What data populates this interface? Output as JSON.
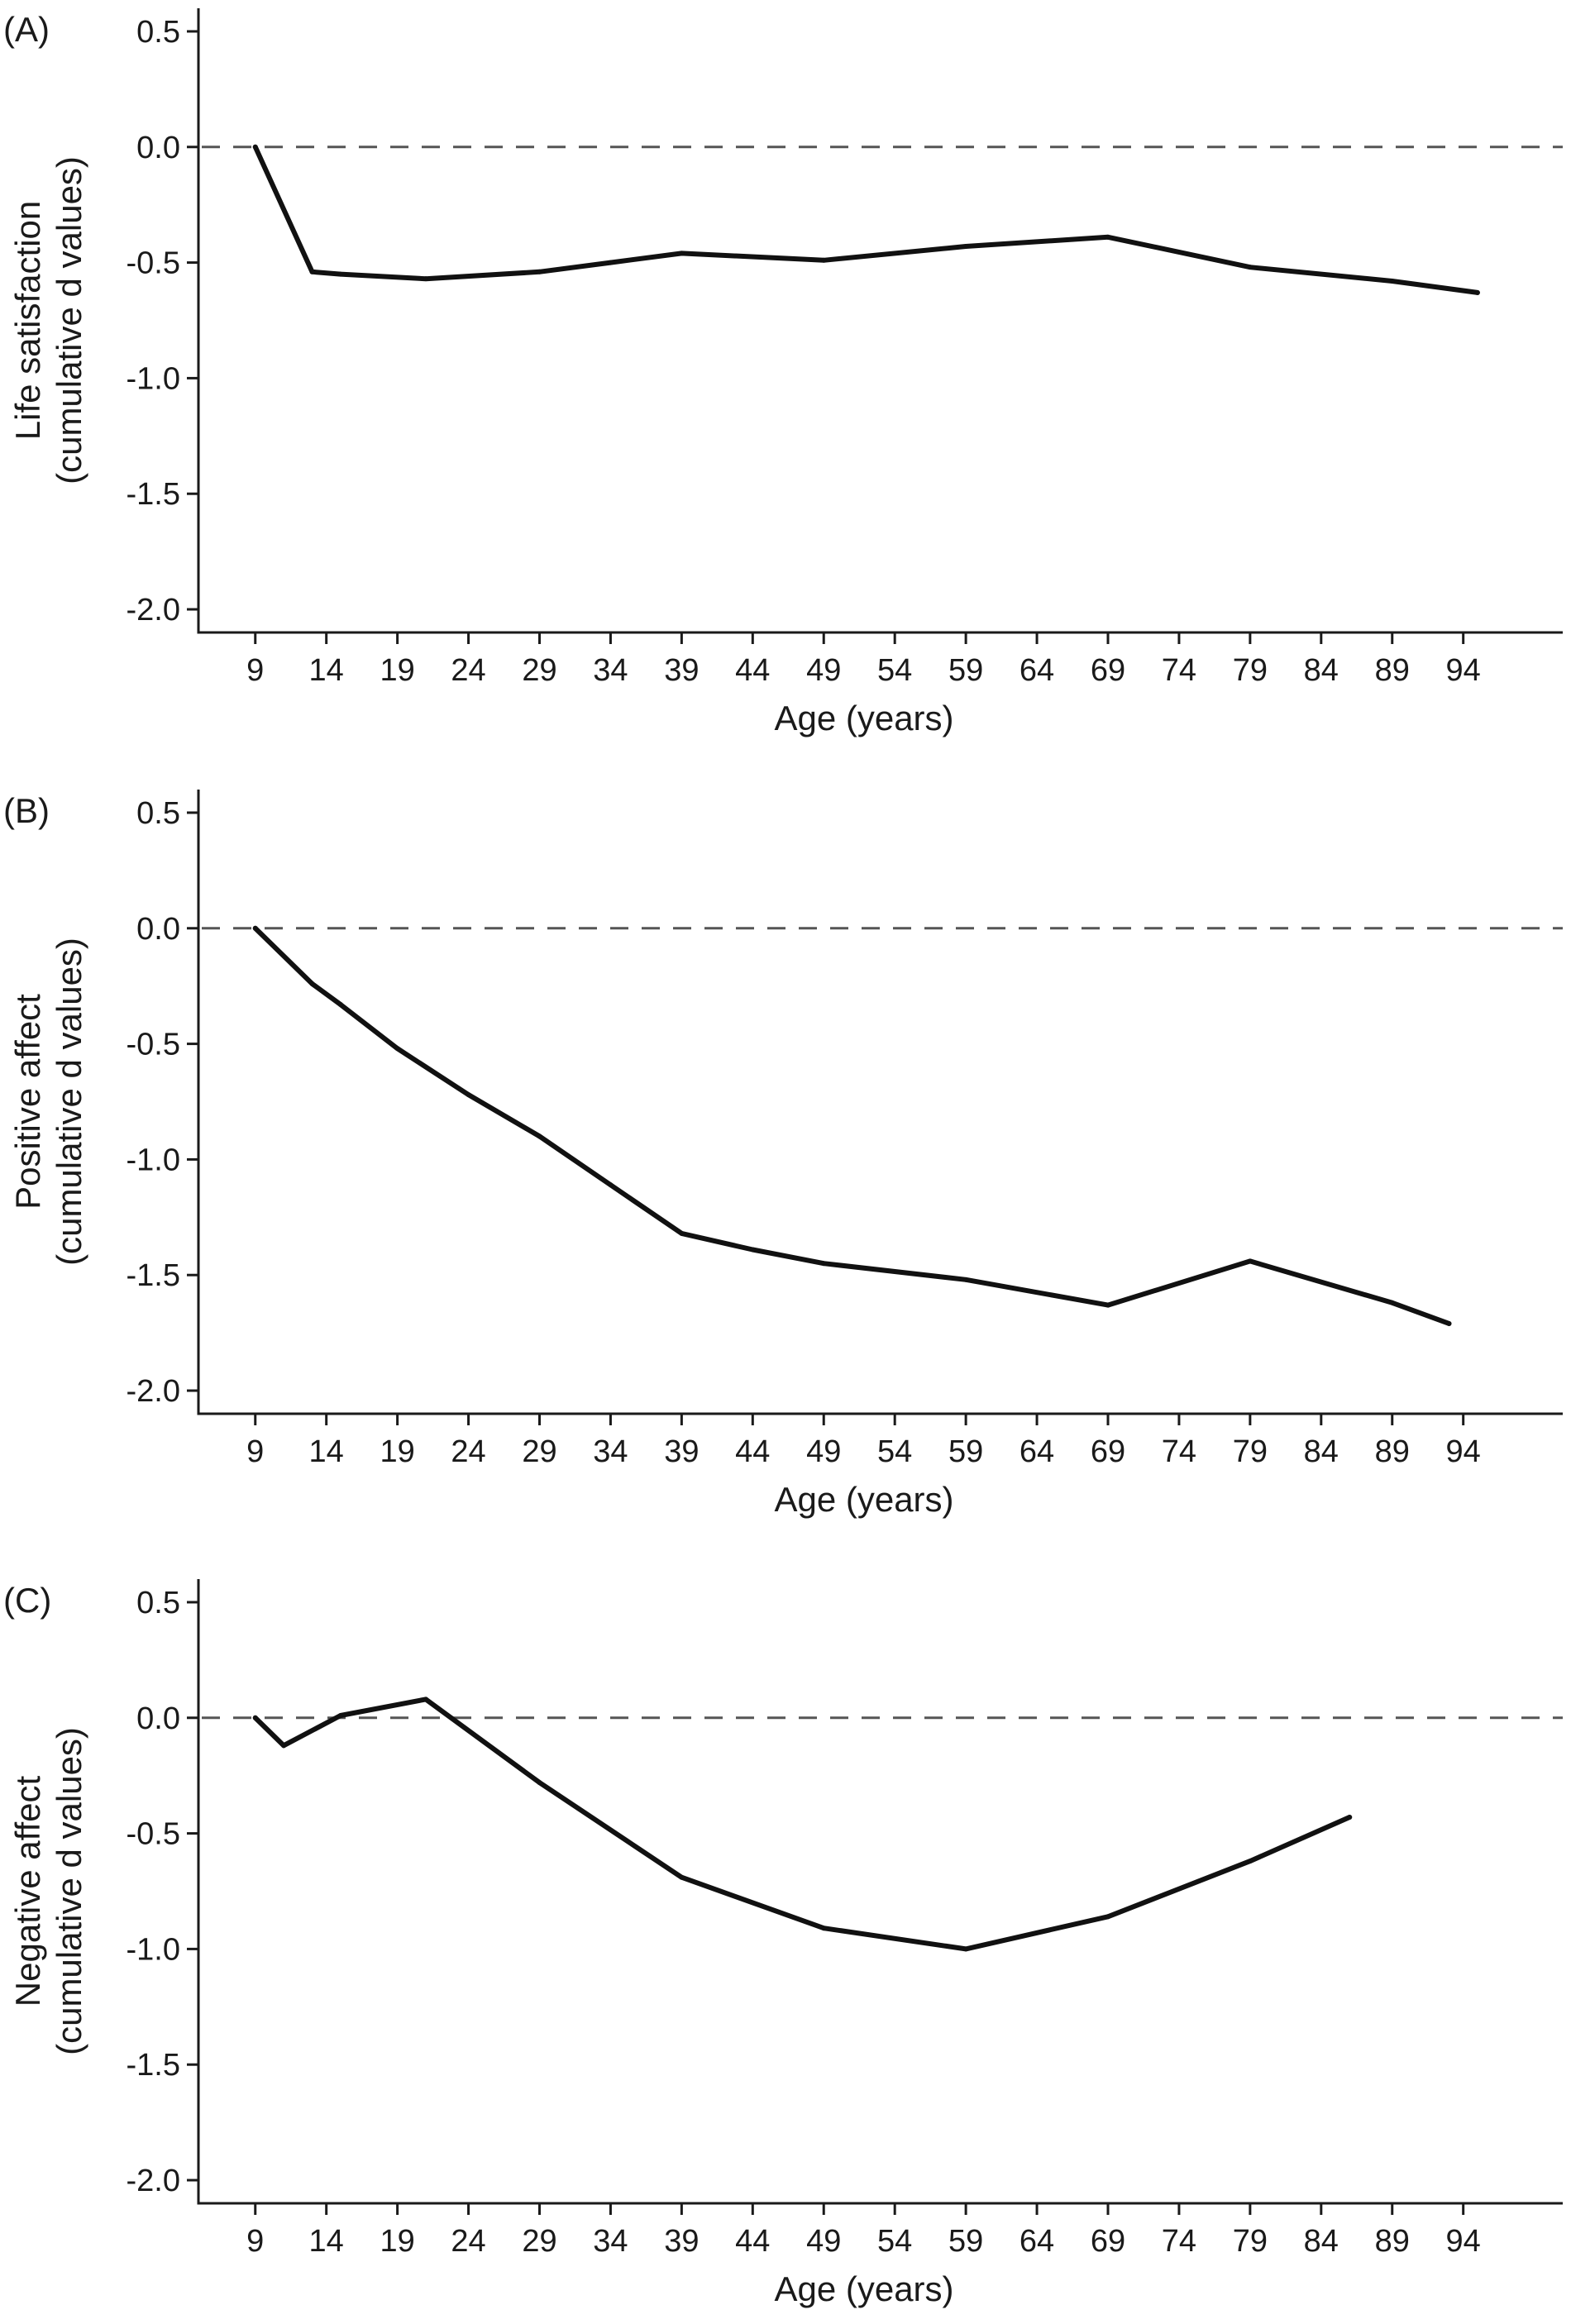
{
  "chart_data": [
    {
      "type": "line",
      "panel_label": "(A)",
      "xlabel": "Age (years)",
      "ylabel_lines": [
        "Life satisfaction",
        "(cumulative d values)"
      ],
      "ylim": [
        -2.1,
        0.6
      ],
      "xlim": [
        5,
        101
      ],
      "xticks": [
        9,
        14,
        19,
        24,
        29,
        34,
        39,
        44,
        49,
        54,
        59,
        64,
        69,
        74,
        79,
        84,
        89,
        94
      ],
      "yticks": [
        0.5,
        0.0,
        -0.5,
        -1.0,
        -1.5,
        -2.0
      ],
      "ytick_labels": [
        "0.5",
        "0.0",
        "-0.5",
        "-1.0",
        "-1.5",
        "-2.0"
      ],
      "reference_line": 0.0,
      "grid": false,
      "series": [
        {
          "x": [
            9,
            13,
            15,
            21,
            29,
            34,
            39,
            49,
            59,
            69,
            79,
            89,
            95
          ],
          "y": [
            0.0,
            -0.54,
            -0.55,
            -0.57,
            -0.54,
            -0.5,
            -0.46,
            -0.49,
            -0.43,
            -0.39,
            -0.52,
            -0.58,
            -0.63
          ]
        }
      ]
    },
    {
      "type": "line",
      "panel_label": "(B)",
      "xlabel": "Age (years)",
      "ylabel_lines": [
        "Positive affect",
        "(cumulative d values)"
      ],
      "ylim": [
        -2.1,
        0.6
      ],
      "xlim": [
        5,
        101
      ],
      "xticks": [
        9,
        14,
        19,
        24,
        29,
        34,
        39,
        44,
        49,
        54,
        59,
        64,
        69,
        74,
        79,
        84,
        89,
        94
      ],
      "yticks": [
        0.5,
        0.0,
        -0.5,
        -1.0,
        -1.5,
        -2.0
      ],
      "ytick_labels": [
        "0.5",
        "0.0",
        "-0.5",
        "-1.0",
        "-1.5",
        "-2.0"
      ],
      "reference_line": 0.0,
      "grid": false,
      "series": [
        {
          "x": [
            9,
            13,
            15,
            19,
            24,
            29,
            34,
            39,
            44,
            49,
            59,
            69,
            79,
            89,
            93
          ],
          "y": [
            0.0,
            -0.24,
            -0.33,
            -0.52,
            -0.72,
            -0.9,
            -1.11,
            -1.32,
            -1.39,
            -1.45,
            -1.52,
            -1.63,
            -1.44,
            -1.62,
            -1.71
          ]
        }
      ]
    },
    {
      "type": "line",
      "panel_label": "(C)",
      "xlabel": "Age (years)",
      "ylabel_lines": [
        "Negative affect",
        "(cumulative d values)"
      ],
      "ylim": [
        -2.1,
        0.6
      ],
      "xlim": [
        5,
        101
      ],
      "xticks": [
        9,
        14,
        19,
        24,
        29,
        34,
        39,
        44,
        49,
        54,
        59,
        64,
        69,
        74,
        79,
        84,
        89,
        94
      ],
      "yticks": [
        0.5,
        0.0,
        -0.5,
        -1.0,
        -1.5,
        -2.0
      ],
      "ytick_labels": [
        "0.5",
        "0.0",
        "-0.5",
        "-1.0",
        "-1.5",
        "-2.0"
      ],
      "reference_line": 0.0,
      "grid": false,
      "series": [
        {
          "x": [
            9,
            11,
            15,
            21,
            29,
            39,
            49,
            59,
            69,
            79,
            86
          ],
          "y": [
            0.0,
            -0.12,
            0.01,
            0.08,
            -0.28,
            -0.69,
            -0.91,
            -1.0,
            -0.86,
            -0.62,
            -0.43
          ]
        }
      ]
    }
  ]
}
